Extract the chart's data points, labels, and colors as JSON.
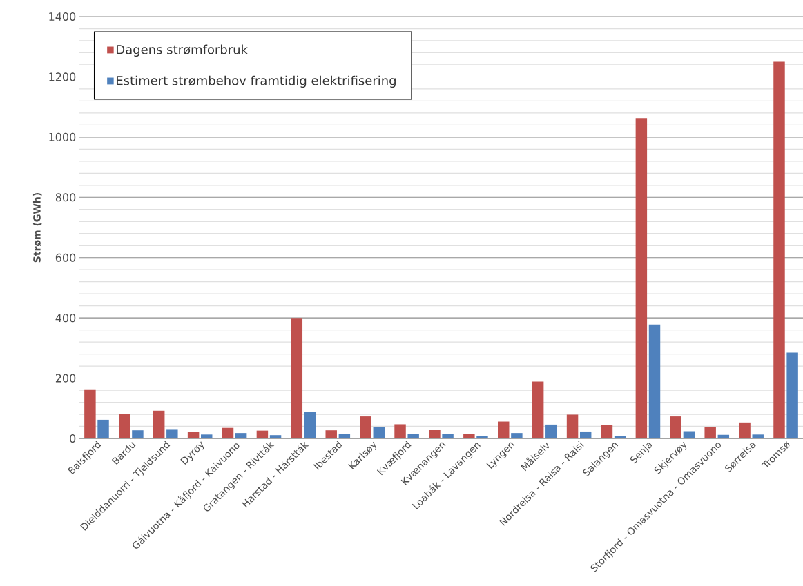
{
  "chart_data": {
    "type": "bar",
    "ylabel": "Strøm (GWh)",
    "categories": [
      "Balsfjord",
      "Bardu",
      "Dielddanuorri - Tjeldsund",
      "Dyrøy",
      "Gáivuotna - Kåfjord - Kaivuono",
      "Gratangen - Rivtták",
      "Harstad - Hárstták",
      "Ibestad",
      "Karlsøy",
      "Kvæfjord",
      "Kvænangen",
      "Loabák - Lavangen",
      "Lyngen",
      "Målselv",
      "Nordreisa - Ráisa - Raisi",
      "Salangen",
      "Senja",
      "Skjervøy",
      "Storfjord - Omasvuotna - Omasvuono",
      "Sørreisa",
      "Tromsø"
    ],
    "series": [
      {
        "name": "Dagens strømforbruk",
        "color": "#c0504d",
        "values": [
          163,
          81,
          92,
          21,
          35,
          26,
          400,
          27,
          73,
          47,
          29,
          15,
          56,
          189,
          79,
          45,
          1063,
          73,
          38,
          53,
          1250
        ]
      },
      {
        "name": "Estimert strømbehov framtidig elektrifisering",
        "color": "#4f81bd",
        "values": [
          62,
          27,
          31,
          13,
          18,
          11,
          89,
          15,
          37,
          16,
          15,
          7,
          18,
          46,
          23,
          7,
          378,
          24,
          12,
          13,
          285
        ]
      }
    ],
    "ylim": [
      0,
      1400
    ],
    "yticks": [
      0,
      200,
      400,
      600,
      800,
      1000,
      1200,
      1400
    ],
    "grid": "y",
    "legend": "top left"
  }
}
